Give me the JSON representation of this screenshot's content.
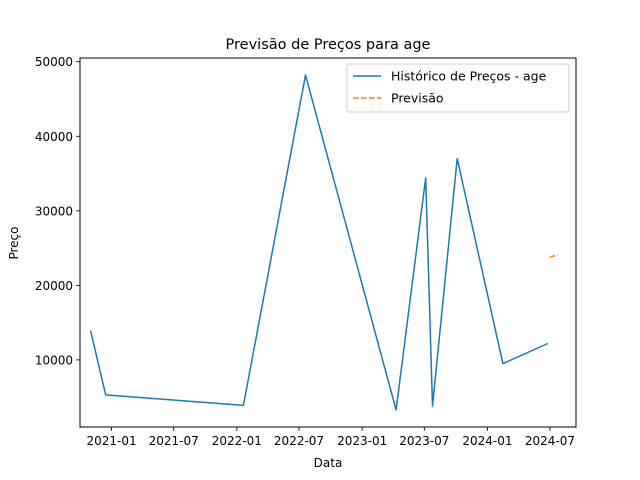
{
  "chart_data": {
    "type": "line",
    "title": "Previsão de Preços para age",
    "xlabel": "Data",
    "ylabel": "Preço",
    "x_axis_type": "date",
    "xlim": [
      "2020-10-01",
      "2024-09-15"
    ],
    "ylim": [
      1000,
      50500
    ],
    "x_ticks": [
      "2021-01-01",
      "2021-07-01",
      "2022-01-01",
      "2022-07-01",
      "2023-01-01",
      "2023-07-01",
      "2024-01-01",
      "2024-07-01"
    ],
    "x_tick_labels": [
      "2021-01",
      "2021-07",
      "2022-01",
      "2022-07",
      "2023-01",
      "2023-07",
      "2024-01",
      "2024-07"
    ],
    "y_ticks": [
      10000,
      20000,
      30000,
      40000,
      50000
    ],
    "y_tick_labels": [
      "10000",
      "20000",
      "30000",
      "40000",
      "50000"
    ],
    "grid": false,
    "legend_position": "top-right",
    "series": [
      {
        "name": "Histórico de Preços - age",
        "color": "#1f77b4",
        "style": "solid",
        "points": [
          {
            "x": "2020-11-01",
            "y": 13900
          },
          {
            "x": "2020-12-15",
            "y": 5300
          },
          {
            "x": "2022-01-20",
            "y": 3900
          },
          {
            "x": "2022-07-20",
            "y": 48200
          },
          {
            "x": "2023-04-10",
            "y": 3300
          },
          {
            "x": "2023-07-05",
            "y": 34400
          },
          {
            "x": "2023-07-25",
            "y": 3800
          },
          {
            "x": "2023-10-05",
            "y": 37000
          },
          {
            "x": "2024-02-15",
            "y": 9500
          },
          {
            "x": "2024-06-25",
            "y": 12200
          }
        ]
      },
      {
        "name": "Previsão",
        "color": "#ff7f0e",
        "style": "dashed",
        "points": [
          {
            "x": "2024-07-01",
            "y": 23800
          },
          {
            "x": "2024-07-25",
            "y": 24100
          }
        ]
      }
    ]
  }
}
